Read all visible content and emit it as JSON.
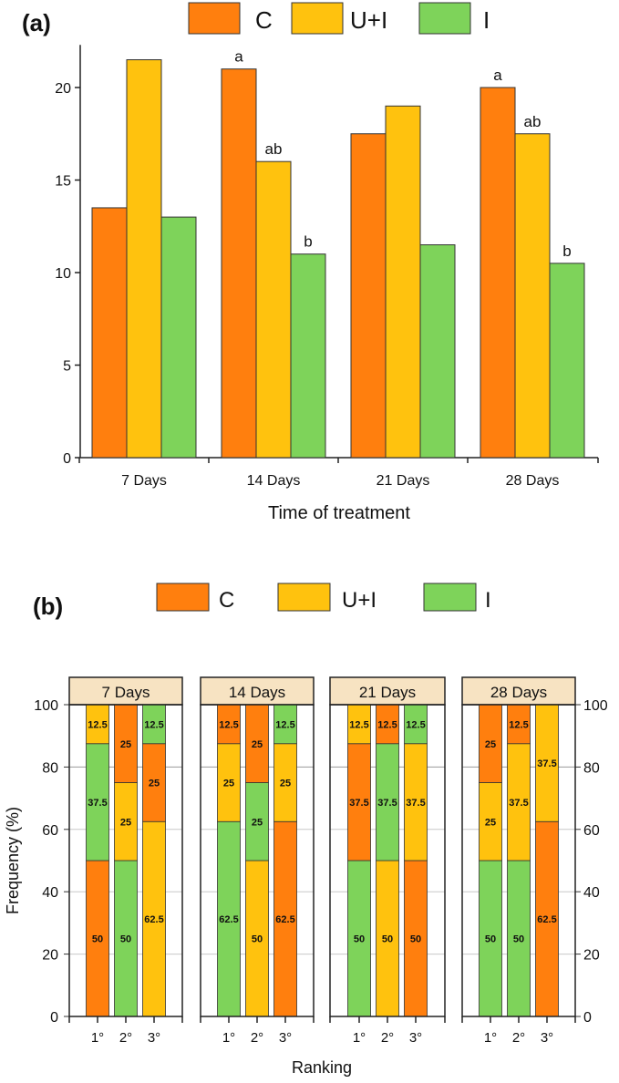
{
  "colors": {
    "C": "#FF7F0E",
    "U+I": "#FFC20E",
    "I": "#7ED35A",
    "strip": "#F7E3C2",
    "grid": "#C8C8C8"
  },
  "chart_data": [
    {
      "panel_label": "(a)",
      "type": "bar",
      "legend": [
        "C",
        "U+I",
        "I"
      ],
      "legend_placement": "top",
      "xlabel": "Time of treatment",
      "ylabel": "",
      "ylim": [
        0,
        22
      ],
      "yticks": [
        0,
        5,
        10,
        15,
        20
      ],
      "categories": [
        "7 Days",
        "14 Days",
        "21 Days",
        "28 Days"
      ],
      "series": [
        {
          "name": "C",
          "values": [
            13.5,
            21,
            17.5,
            20
          ],
          "annotations": [
            "",
            "a",
            "",
            "a"
          ]
        },
        {
          "name": "U+I",
          "values": [
            21.5,
            16,
            19,
            17.5
          ],
          "annotations": [
            "",
            "ab",
            "",
            "ab"
          ]
        },
        {
          "name": "I",
          "values": [
            13,
            11,
            11.5,
            10.5
          ],
          "annotations": [
            "",
            "b",
            "",
            "b"
          ]
        }
      ]
    },
    {
      "panel_label": "(b)",
      "type": "bar",
      "stacked": true,
      "legend": [
        "C",
        "U+I",
        "I"
      ],
      "legend_placement": "top",
      "xlabel": "Ranking",
      "ylabel": "Frequency (%)",
      "ylim": [
        0,
        100
      ],
      "yticks": [
        0,
        20,
        40,
        60,
        80,
        100
      ],
      "grid": true,
      "facets": [
        {
          "title": "7 Days",
          "ranks": [
            {
              "label": "1°",
              "segments": [
                {
                  "series": "C",
                  "value": 50
                },
                {
                  "series": "I",
                  "value": 37.5
                },
                {
                  "series": "U+I",
                  "value": 12.5
                }
              ]
            },
            {
              "label": "2°",
              "segments": [
                {
                  "series": "I",
                  "value": 50
                },
                {
                  "series": "U+I",
                  "value": 25
                },
                {
                  "series": "C",
                  "value": 25
                }
              ]
            },
            {
              "label": "3°",
              "segments": [
                {
                  "series": "U+I",
                  "value": 62.5
                },
                {
                  "series": "C",
                  "value": 25
                },
                {
                  "series": "I",
                  "value": 12.5
                }
              ]
            }
          ]
        },
        {
          "title": "14 Days",
          "ranks": [
            {
              "label": "1°",
              "segments": [
                {
                  "series": "I",
                  "value": 62.5
                },
                {
                  "series": "U+I",
                  "value": 25
                },
                {
                  "series": "C",
                  "value": 12.5
                }
              ]
            },
            {
              "label": "2°",
              "segments": [
                {
                  "series": "U+I",
                  "value": 50
                },
                {
                  "series": "I",
                  "value": 25
                },
                {
                  "series": "C",
                  "value": 25
                }
              ]
            },
            {
              "label": "3°",
              "segments": [
                {
                  "series": "C",
                  "value": 62.5
                },
                {
                  "series": "U+I",
                  "value": 25
                },
                {
                  "series": "I",
                  "value": 12.5
                }
              ]
            }
          ]
        },
        {
          "title": "21 Days",
          "ranks": [
            {
              "label": "1°",
              "segments": [
                {
                  "series": "I",
                  "value": 50
                },
                {
                  "series": "C",
                  "value": 37.5
                },
                {
                  "series": "U+I",
                  "value": 12.5
                }
              ]
            },
            {
              "label": "2°",
              "segments": [
                {
                  "series": "U+I",
                  "value": 50
                },
                {
                  "series": "I",
                  "value": 37.5
                },
                {
                  "series": "C",
                  "value": 12.5
                }
              ]
            },
            {
              "label": "3°",
              "segments": [
                {
                  "series": "C",
                  "value": 50
                },
                {
                  "series": "U+I",
                  "value": 37.5
                },
                {
                  "series": "I",
                  "value": 12.5
                }
              ]
            }
          ]
        },
        {
          "title": "28 Days",
          "ranks": [
            {
              "label": "1°",
              "segments": [
                {
                  "series": "I",
                  "value": 50
                },
                {
                  "series": "U+I",
                  "value": 25
                },
                {
                  "series": "C",
                  "value": 25
                }
              ]
            },
            {
              "label": "2°",
              "segments": [
                {
                  "series": "I",
                  "value": 50
                },
                {
                  "series": "U+I",
                  "value": 37.5
                },
                {
                  "series": "C",
                  "value": 12.5
                }
              ]
            },
            {
              "label": "3°",
              "segments": [
                {
                  "series": "C",
                  "value": 62.5
                },
                {
                  "series": "U+I",
                  "value": 37.5
                }
              ]
            }
          ]
        }
      ]
    }
  ]
}
